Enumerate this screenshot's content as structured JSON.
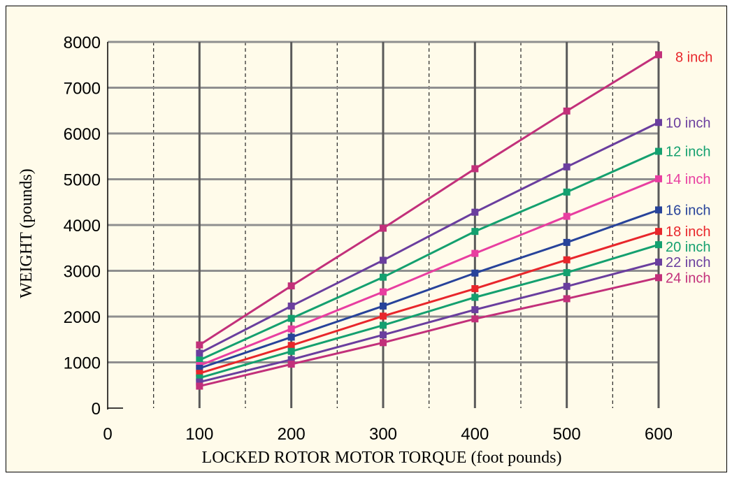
{
  "chart_data": {
    "type": "line",
    "title": "",
    "xlabel": "LOCKED ROTOR MOTOR TORQUE (foot pounds)",
    "ylabel": "WEIGHT (pounds)",
    "xlim": [
      0,
      600
    ],
    "ylim": [
      0,
      8000
    ],
    "x_major_ticks": [
      0,
      100,
      200,
      300,
      400,
      500,
      600
    ],
    "x_minor_ticks": [
      50,
      150,
      250,
      350,
      450,
      550
    ],
    "y_ticks": [
      0,
      1000,
      2000,
      3000,
      4000,
      5000,
      6000,
      7000,
      8000
    ],
    "grid": true,
    "x": [
      100,
      200,
      300,
      400,
      500,
      600
    ],
    "series": [
      {
        "name": "8 inch",
        "color": "#c2307a",
        "label_color": "#e8262b",
        "values": [
          1380,
          2670,
          3930,
          5230,
          6490,
          7720
        ]
      },
      {
        "name": "10 inch",
        "color": "#6a3e9e",
        "label_color": "#6a3e9e",
        "values": [
          1200,
          2230,
          3230,
          4280,
          5270,
          6240
        ]
      },
      {
        "name": "12 inch",
        "color": "#14a06f",
        "label_color": "#14a06f",
        "values": [
          1050,
          1960,
          2860,
          3860,
          4720,
          5610
        ]
      },
      {
        "name": "14 inch",
        "color": "#e83ea0",
        "label_color": "#e83ea0",
        "values": [
          930,
          1730,
          2540,
          3380,
          4190,
          5010
        ]
      },
      {
        "name": "16 inch",
        "color": "#27439a",
        "label_color": "#27439a",
        "values": [
          870,
          1550,
          2230,
          2950,
          3620,
          4330
        ]
      },
      {
        "name": "18 inch",
        "color": "#e8262b",
        "label_color": "#e8262b",
        "values": [
          760,
          1370,
          2010,
          2610,
          3240,
          3860
        ]
      },
      {
        "name": "20 inch",
        "color": "#14a06f",
        "label_color": "#14a06f",
        "values": [
          660,
          1240,
          1810,
          2420,
          2960,
          3570
        ]
      },
      {
        "name": "22 inch",
        "color": "#6a3e9e",
        "label_color": "#6a3e9e",
        "values": [
          570,
          1060,
          1600,
          2150,
          2660,
          3190
        ]
      },
      {
        "name": "24 inch",
        "color": "#c2307a",
        "label_color": "#c2307a",
        "values": [
          480,
          960,
          1430,
          1950,
          2390,
          2850
        ]
      }
    ]
  }
}
